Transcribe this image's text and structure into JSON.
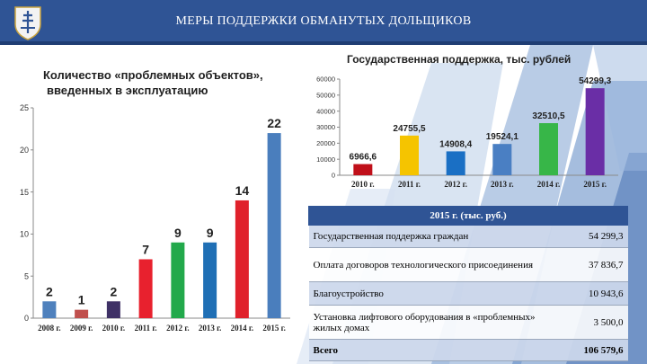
{
  "header": {
    "title": "МЕРЫ ПОДДЕРЖКИ ОБМАНУТЫХ ДОЛЬЩИКОВ"
  },
  "chart_data": [
    {
      "type": "bar",
      "title": "Количество «проблемных объектов», введенных в эксплуатацию",
      "title_lines": [
        "Количество «проблемных объектов»,",
        "введенных в эксплуатацию"
      ],
      "categories": [
        "2008 г.",
        "2009 г.",
        "2010 г.",
        "2011 г.",
        "2012 г.",
        "2013 г.",
        "2014 г.",
        "2015 г."
      ],
      "values": [
        2,
        1,
        2,
        7,
        9,
        9,
        14,
        22
      ],
      "data_labels": [
        "2",
        "1",
        "2",
        "7",
        "9",
        "9",
        "14",
        "22"
      ],
      "colors": [
        "#4f81bd",
        "#c0504d",
        "#3f3166",
        "#e8212e",
        "#22a94b",
        "#1f6fb5",
        "#e0212b",
        "#4a7ebd"
      ],
      "ylim": [
        0,
        25
      ],
      "yticks": [
        0,
        5,
        10,
        15,
        20,
        25
      ],
      "ytick_labels": [
        "0",
        "5",
        "10",
        "15",
        "20",
        "25"
      ],
      "grid": false,
      "legend": "none"
    },
    {
      "type": "bar",
      "title": "Государственная поддержка, тыс. рублей",
      "categories": [
        "2010 г.",
        "2011 г.",
        "2012 г.",
        "2013 г.",
        "2014 г.",
        "2015 г."
      ],
      "values": [
        6966.6,
        24755.5,
        14908.4,
        19524.1,
        32510.5,
        54299.3
      ],
      "data_labels": [
        "6966,6",
        "24755,5",
        "14908,4",
        "19524,1",
        "32510,5",
        "54299,3"
      ],
      "colors": [
        "#c0101a",
        "#f5c400",
        "#1a6fc4",
        "#4a7fc3",
        "#37b648",
        "#6a2ea6"
      ],
      "ylim": [
        0,
        60000
      ],
      "yticks": [
        0,
        10000,
        20000,
        30000,
        40000,
        50000,
        60000
      ],
      "ytick_labels": [
        "0",
        "10000",
        "20000",
        "30000",
        "40000",
        "50000",
        "60000"
      ],
      "grid": false,
      "legend": "none"
    }
  ],
  "table": {
    "header": "2015 г. (тыс. руб.)",
    "rows": [
      {
        "label": "Государственная поддержка граждан",
        "value": "54 299,3"
      },
      {
        "label": "Оплата договоров технологического присоединения",
        "value": "37 836,7"
      },
      {
        "label": "Благоустройство",
        "value": "10 943,6"
      },
      {
        "label": "Установка лифтового оборудования в «проблемных» жилых домах",
        "value": "3 500,0"
      }
    ],
    "total": {
      "label": "Всего",
      "value": "106 579,6"
    }
  },
  "colors": {
    "header_bg": "#2f5495",
    "table_header_bg": "#2f5495",
    "table_row_alt": "#cdd8ec",
    "background_art": "#7fa3d2"
  },
  "icons": {
    "crest": "novosibirsk-crest-icon"
  }
}
